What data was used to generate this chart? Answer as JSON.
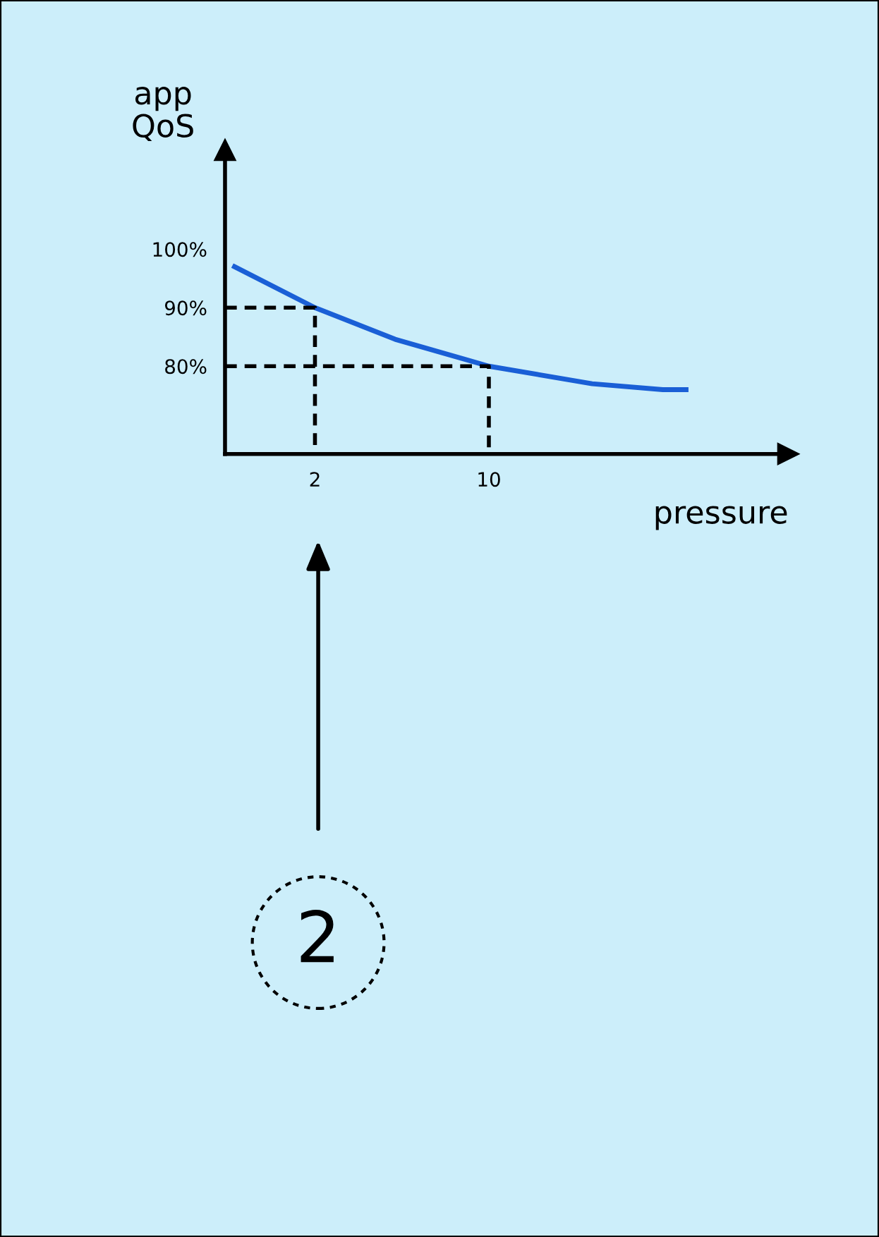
{
  "chart_data": {
    "type": "line",
    "xlabel": "pressure",
    "ylabel": "app\nQoS",
    "log": "x",
    "xlim": [
      0.87,
      160
    ],
    "ylim": [
      65,
      117
    ],
    "xticks": [
      2,
      10
    ],
    "yticks": [
      {
        "value": 80,
        "label": "80%"
      },
      {
        "value": 90,
        "label": "90%"
      },
      {
        "value": 100,
        "label": "100%"
      }
    ],
    "series": [
      {
        "color": "#1a5fd6",
        "line_style": "solid",
        "x": [
          0.95,
          2,
          4.2,
          10,
          26,
          50,
          62
        ],
        "values": [
          97,
          90,
          84.6,
          80,
          77,
          76,
          76
        ]
      },
      {
        "color": "#000000",
        "line_style": "dashed",
        "x": [
          0.87,
          2,
          2
        ],
        "values": [
          90,
          90,
          65
        ]
      },
      {
        "color": "#000000",
        "line_style": "dashed",
        "x": [
          0.87,
          10,
          10
        ],
        "values": [
          80,
          80,
          65
        ]
      }
    ],
    "annotations": [
      "2"
    ]
  }
}
